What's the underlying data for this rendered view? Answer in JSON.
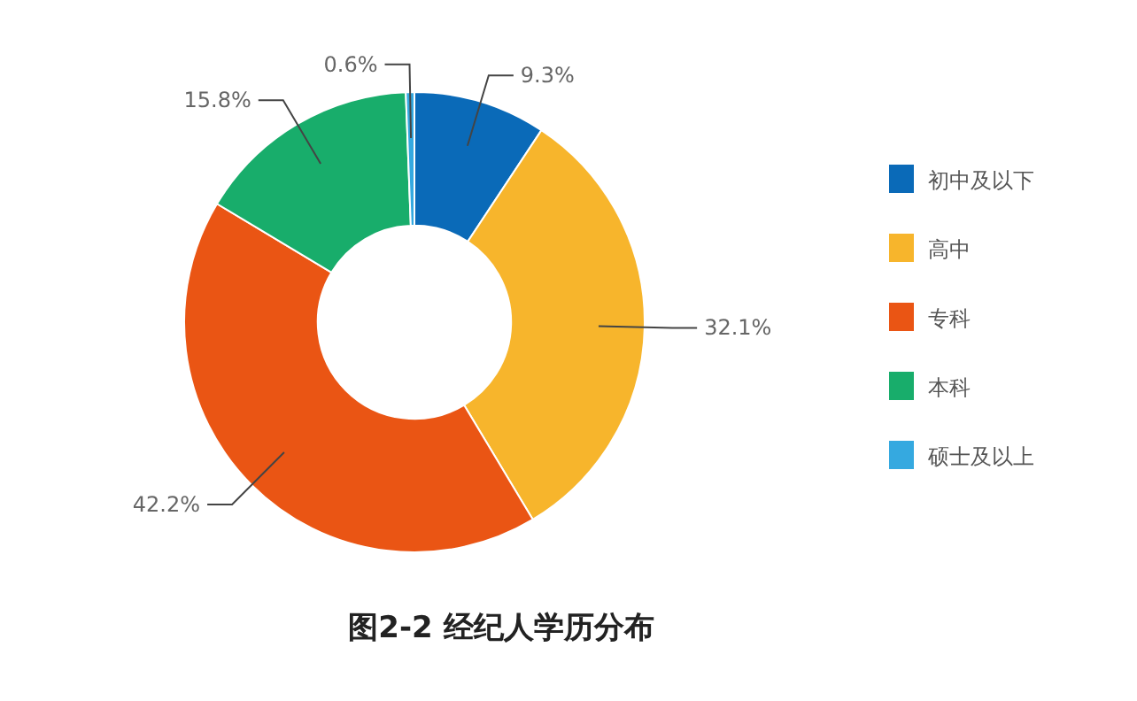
{
  "chart_data": {
    "type": "donut",
    "title": "图2-2 经纪人学历分布",
    "categories": [
      "初中及以下",
      "高中",
      "专科",
      "本科",
      "硕士及以上"
    ],
    "values": [
      9.3,
      32.1,
      42.2,
      15.8,
      0.6
    ],
    "colors": [
      "#0a6ab8",
      "#f7b52c",
      "#ea5514",
      "#18ad6b",
      "#35a9e0"
    ],
    "value_labels": [
      "9.3%",
      "32.1%",
      "42.2%",
      "15.8%",
      "0.6%"
    ],
    "legend": "right"
  }
}
